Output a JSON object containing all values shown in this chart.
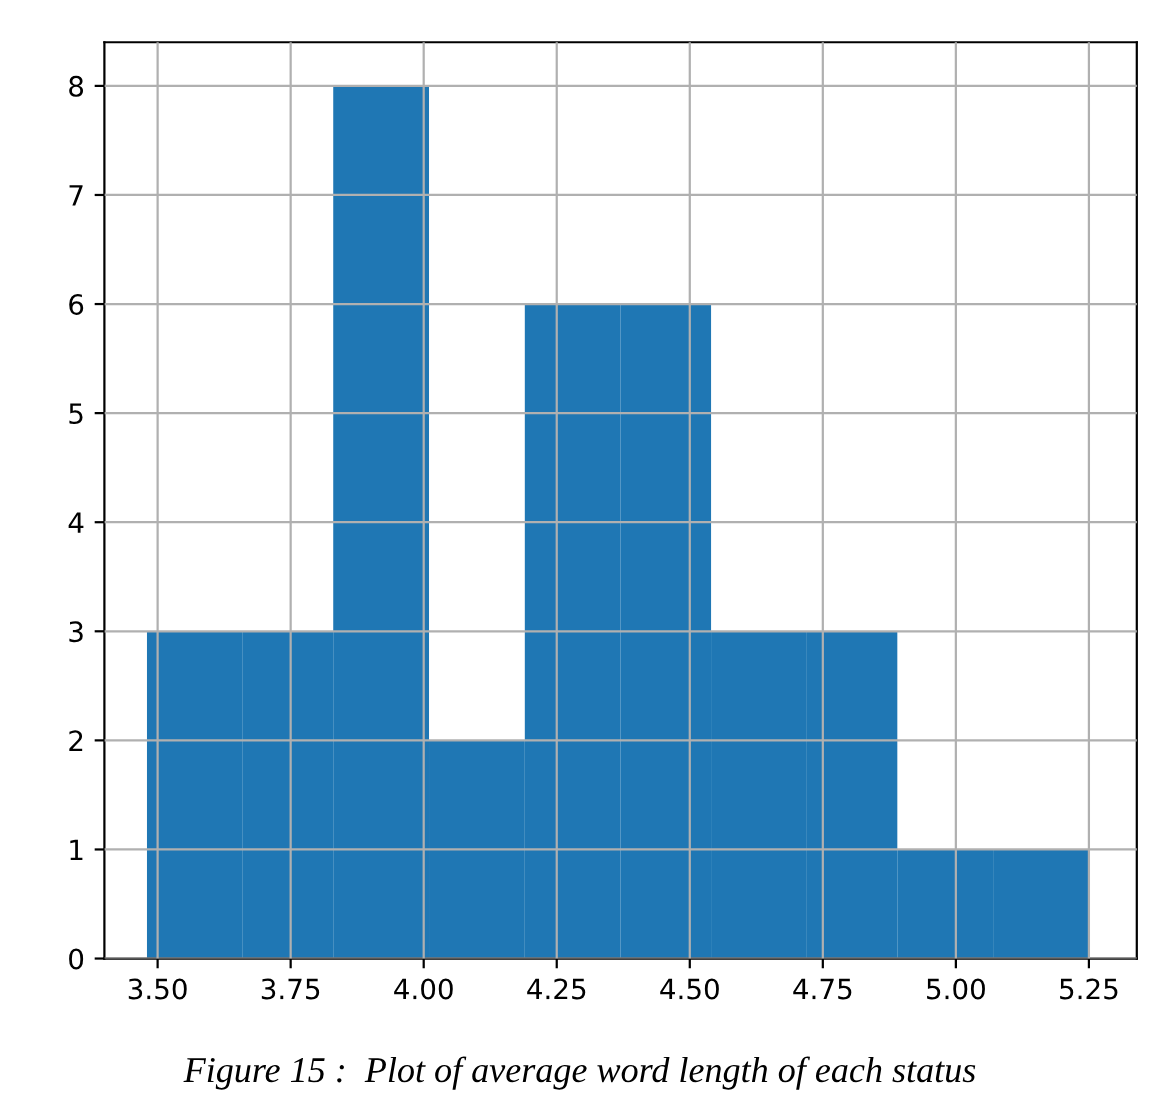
{
  "chart_data": {
    "type": "histogram",
    "bins": [
      3.48,
      3.66,
      3.83,
      4.01,
      4.19,
      4.37,
      4.54,
      4.72,
      4.89,
      5.07,
      5.25
    ],
    "values": [
      3,
      3,
      8,
      2,
      6,
      6,
      3,
      3,
      1,
      1
    ],
    "color": "#1f77b4",
    "xlim": [
      3.4,
      5.34
    ],
    "xticks": [
      {
        "value": 3.5,
        "label": "3.50"
      },
      {
        "value": 3.75,
        "label": "3.75"
      },
      {
        "value": 4.0,
        "label": "4.00"
      },
      {
        "value": 4.25,
        "label": "4.25"
      },
      {
        "value": 4.5,
        "label": "4.50"
      },
      {
        "value": 4.75,
        "label": "4.75"
      },
      {
        "value": 5.0,
        "label": "5.00"
      },
      {
        "value": 5.25,
        "label": "5.25"
      }
    ],
    "ylim": [
      0,
      8.4
    ],
    "yticks": [
      0,
      1,
      2,
      3,
      4,
      5,
      6,
      7,
      8
    ],
    "grid": true,
    "annotations": [
      "Figure 15 :  Plot of average word length of each status"
    ]
  }
}
